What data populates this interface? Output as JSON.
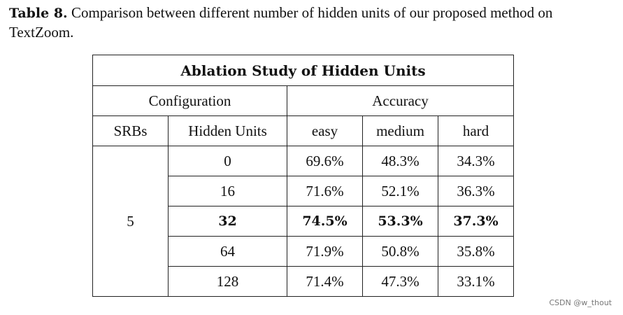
{
  "caption": {
    "label": "Table 8.",
    "text": " Comparison between different number of hidden units of our proposed method on TextZoom."
  },
  "table": {
    "title": "Ablation Study of Hidden Units",
    "group_headers": {
      "configuration": "Configuration",
      "accuracy": "Accuracy"
    },
    "columns": [
      "SRBs",
      "Hidden Units",
      "easy",
      "medium",
      "hard"
    ],
    "srbs": "5",
    "rows": [
      {
        "hidden_units": "0",
        "easy": "69.6%",
        "medium": "48.3%",
        "hard": "34.3%",
        "bold": false
      },
      {
        "hidden_units": "16",
        "easy": "71.6%",
        "medium": "52.1%",
        "hard": "36.3%",
        "bold": false
      },
      {
        "hidden_units": "32",
        "easy": "74.5%",
        "medium": "53.3%",
        "hard": "37.3%",
        "bold": true
      },
      {
        "hidden_units": "64",
        "easy": "71.9%",
        "medium": "50.8%",
        "hard": "35.8%",
        "bold": false
      },
      {
        "hidden_units": "128",
        "easy": "71.4%",
        "medium": "47.3%",
        "hard": "33.1%",
        "bold": false
      }
    ]
  },
  "watermark": "CSDN @w_thout"
}
